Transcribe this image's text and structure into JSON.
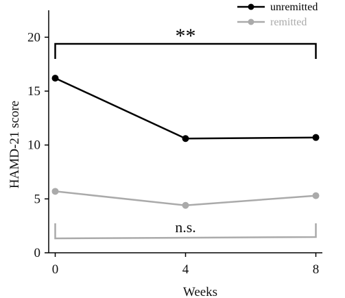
{
  "chart_data": {
    "type": "line",
    "title": "",
    "xlabel": "Weeks",
    "ylabel": "HAMD-21 score",
    "x": [
      0,
      4,
      8
    ],
    "x_ticks": [
      "0",
      "4",
      "8"
    ],
    "y_ticks": [
      "0",
      "5",
      "10",
      "15",
      "20"
    ],
    "xlim": [
      -0.2,
      8.2
    ],
    "ylim": [
      0,
      22.5
    ],
    "grid": false,
    "legend_position": "top-right",
    "series": [
      {
        "name": "unremitted",
        "values": [
          16.2,
          10.6,
          10.7
        ],
        "color": "#000000"
      },
      {
        "name": "remitted",
        "values": [
          5.7,
          4.4,
          5.3
        ],
        "color": "#aaaaaa"
      }
    ],
    "annotations": [
      {
        "text": "**",
        "series": "unremitted",
        "from_x": 0,
        "to_x": 8,
        "color": "#000000"
      },
      {
        "text": "n.s.",
        "series": "remitted",
        "from_x": 0,
        "to_x": 8,
        "color": "#aaaaaa"
      }
    ]
  }
}
